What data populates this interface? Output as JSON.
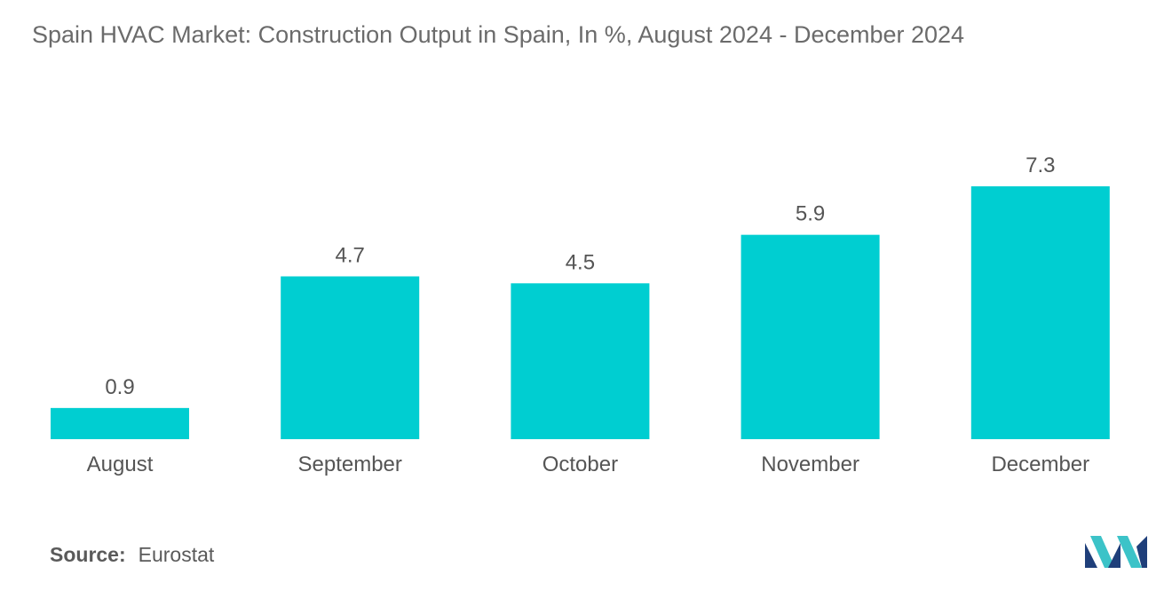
{
  "chart_data": {
    "type": "bar",
    "title": "Spain HVAC Market: Construction Output in Spain, In %, August 2024 - December 2024",
    "categories": [
      "August",
      "September",
      "October",
      "November",
      "December"
    ],
    "values": [
      0.9,
      4.7,
      4.5,
      5.9,
      7.3
    ],
    "value_labels": [
      "0.9",
      "4.7",
      "4.5",
      "5.9",
      "7.3"
    ],
    "xlabel": "",
    "ylabel": "",
    "ylim": [
      0,
      7.3
    ],
    "grid": false,
    "legend": "none",
    "bar_color": "#00CED1"
  },
  "source": {
    "label": "Source:",
    "value": "Eurostat"
  },
  "logo": {
    "icon": "mordor-intelligence-logo-icon",
    "colors": [
      "#1f3f7a",
      "#3cc3c8"
    ]
  }
}
